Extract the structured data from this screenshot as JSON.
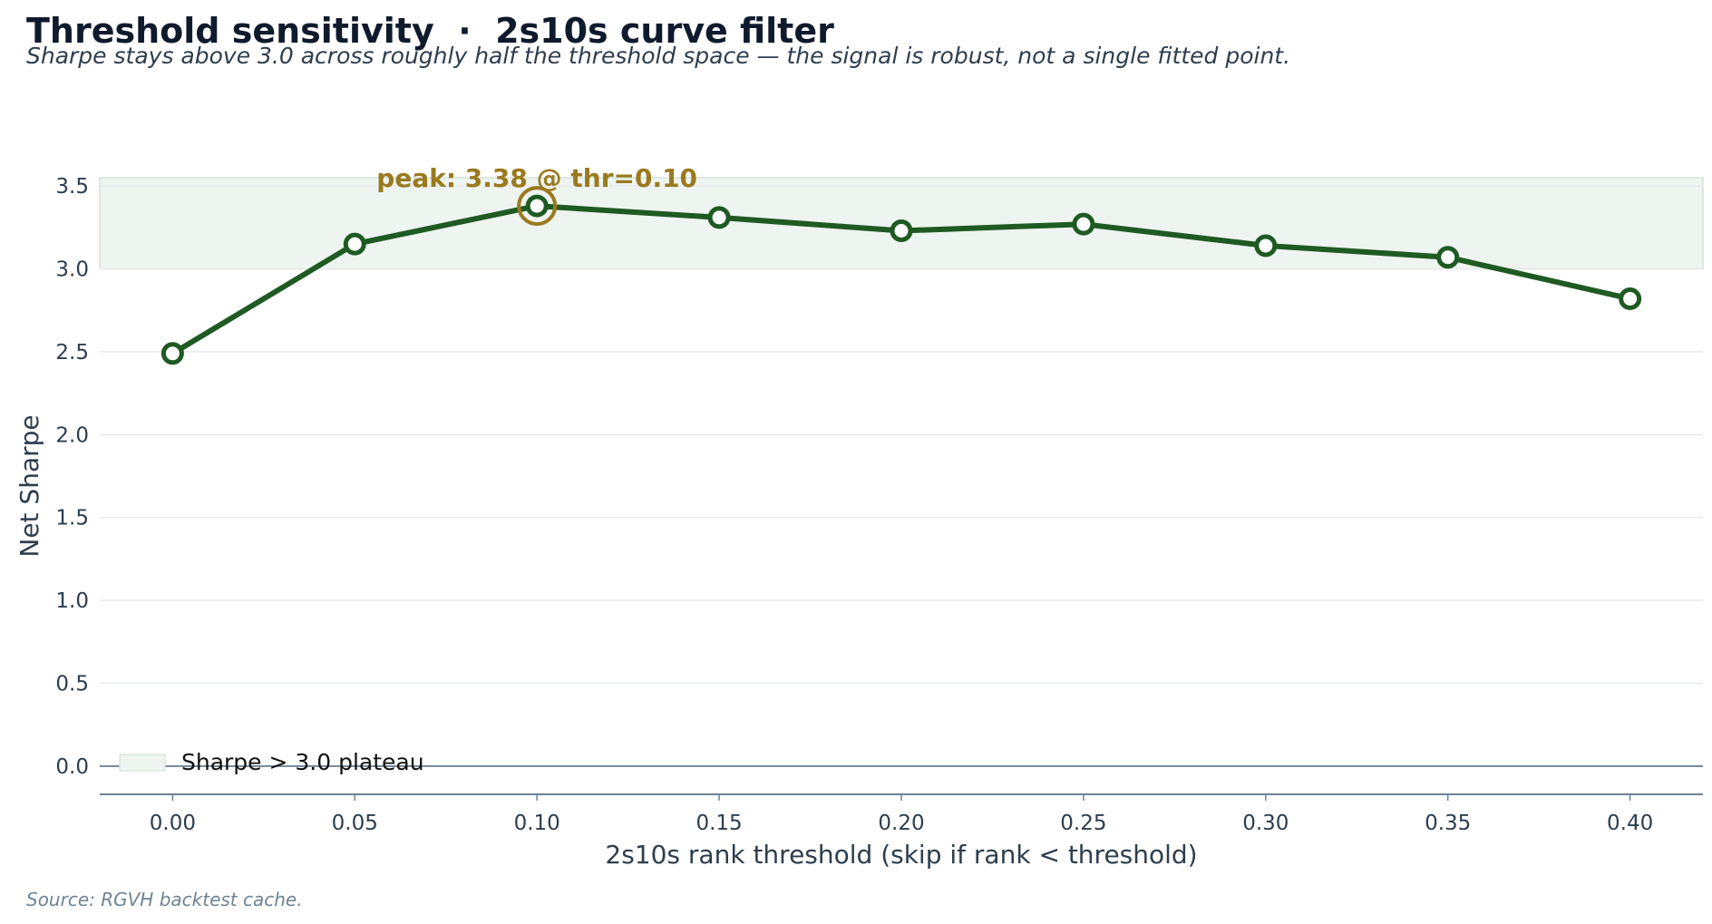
{
  "header": {
    "title": "Threshold sensitivity  ·  2s10s curve filter",
    "subtitle": "Sharpe stays above 3.0 across roughly half the threshold space — the signal is robust, not a single fitted point."
  },
  "footer": {
    "source": "Source: RGVH backtest cache."
  },
  "chart_data": {
    "type": "line",
    "xlabel": "2s10s rank threshold  (skip if rank < threshold)",
    "ylabel": "Net Sharpe",
    "x": [
      0.0,
      0.05,
      0.1,
      0.15,
      0.2,
      0.25,
      0.3,
      0.35,
      0.4
    ],
    "x_tick_labels": [
      "0.00",
      "0.05",
      "0.10",
      "0.15",
      "0.20",
      "0.25",
      "0.30",
      "0.35",
      "0.40"
    ],
    "y_ticks": [
      0.0,
      0.5,
      1.0,
      1.5,
      2.0,
      2.5,
      3.0,
      3.5
    ],
    "y_tick_labels": [
      "0.0",
      "0.5",
      "1.0",
      "1.5",
      "2.0",
      "2.5",
      "3.0",
      "3.5"
    ],
    "series": [
      {
        "values": [
          2.49,
          3.15,
          3.38,
          3.31,
          3.23,
          3.27,
          3.14,
          3.07,
          2.82
        ]
      }
    ],
    "xlim": [
      -0.02,
      0.42
    ],
    "ylim": [
      -0.17,
      3.55
    ],
    "plateau": {
      "from": 3.0,
      "to": 3.55,
      "legend_label": "Sharpe > 3.0 plateau"
    },
    "peak": {
      "x": 0.1,
      "y": 3.38,
      "label": "peak: 3.38 @ thr=0.10"
    },
    "baseline": 0.0,
    "grid": "horizontal",
    "legend_position": "lower-left",
    "colors": {
      "line": "#1e5a22",
      "plateau_fill": "#eef4f0",
      "plateau_edge": "#d4e3d8",
      "peak": "#9a7a1e",
      "grid": "#e8eaec",
      "axis": "#6e8494"
    }
  }
}
